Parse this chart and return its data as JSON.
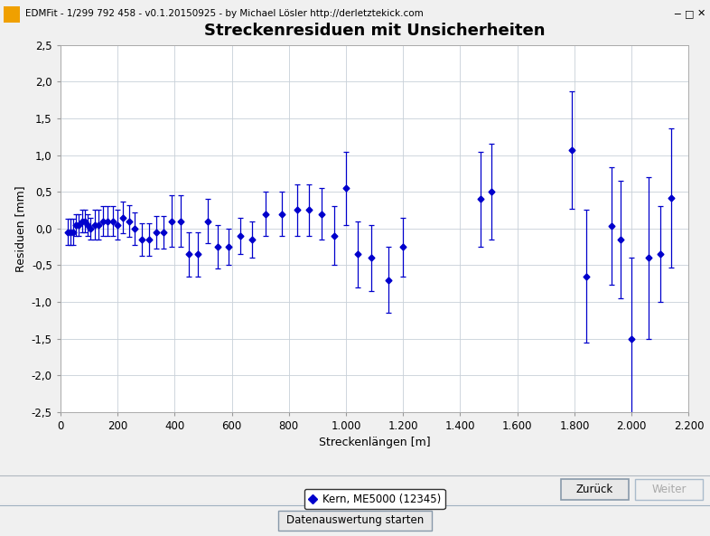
{
  "title": "Streckenresiduen mit Unsicherheiten",
  "xlabel": "Streckenlängen [m]",
  "ylabel": "Residuen [mm]",
  "ylim": [
    -2.5,
    2.5
  ],
  "xlim": [
    0,
    2200
  ],
  "yticks": [
    -2.5,
    -2.0,
    -1.5,
    -1.0,
    -0.5,
    0.0,
    0.5,
    1.0,
    1.5,
    2.0,
    2.5
  ],
  "xticks": [
    0,
    200,
    400,
    600,
    800,
    1000,
    1200,
    1400,
    1600,
    1800,
    2000,
    2200
  ],
  "xticklabels": [
    "0",
    "200",
    "400",
    "600",
    "800",
    "1.000",
    "1.200",
    "1.400",
    "1.600",
    "1.800",
    "2.000",
    "2.200"
  ],
  "yticklabels": [
    "-2,5",
    "-2,0",
    "-1,5",
    "-1,0",
    "-0,5",
    "0,0",
    "0,5",
    "1,0",
    "1,5",
    "2,0",
    "2,5"
  ],
  "data_color": "#0000cc",
  "marker_color": "#0000cc",
  "bg_color": "#dce6f0",
  "plot_bg": "#ffffff",
  "titlebar_bg": "#f0f0f0",
  "legend_label": "Kern, ME5000 (12345)",
  "title_fontsize": 13,
  "label_fontsize": 9,
  "tick_fontsize": 8.5,
  "titlebar_text": "EDMFit - 1/299 792 458 - v0.1.20150925 - by Michael Lösler http://derletztekick.com",
  "btn_label": "Datenauswertung starten",
  "x": [
    25,
    35,
    45,
    55,
    65,
    75,
    85,
    95,
    105,
    120,
    135,
    150,
    165,
    185,
    200,
    220,
    240,
    260,
    285,
    310,
    335,
    360,
    390,
    420,
    450,
    480,
    515,
    550,
    590,
    630,
    670,
    720,
    775,
    830,
    870,
    915,
    960,
    1000,
    1040,
    1090,
    1150,
    1200,
    1470,
    1510,
    1790,
    1840,
    1930,
    1960,
    2000,
    2060,
    2100,
    2140
  ],
  "y": [
    -0.05,
    -0.05,
    -0.05,
    0.05,
    0.05,
    0.1,
    0.1,
    0.05,
    0.0,
    0.05,
    0.05,
    0.1,
    0.1,
    0.1,
    0.05,
    0.15,
    0.1,
    0.0,
    -0.15,
    -0.15,
    -0.05,
    -0.05,
    0.1,
    0.1,
    -0.35,
    -0.35,
    0.1,
    -0.25,
    -0.25,
    -0.1,
    -0.15,
    0.2,
    0.2,
    0.25,
    0.25,
    0.2,
    -0.1,
    0.55,
    -0.35,
    -0.4,
    -0.7,
    -0.25,
    0.4,
    0.5,
    1.07,
    -0.65,
    0.03,
    -0.15,
    -1.5,
    -0.4,
    -0.35,
    0.42
  ],
  "yerr": [
    0.18,
    0.18,
    0.18,
    0.15,
    0.15,
    0.15,
    0.15,
    0.15,
    0.15,
    0.2,
    0.2,
    0.2,
    0.2,
    0.2,
    0.2,
    0.22,
    0.22,
    0.22,
    0.22,
    0.22,
    0.22,
    0.22,
    0.35,
    0.35,
    0.3,
    0.3,
    0.3,
    0.3,
    0.25,
    0.25,
    0.25,
    0.3,
    0.3,
    0.35,
    0.35,
    0.35,
    0.4,
    0.5,
    0.45,
    0.45,
    0.45,
    0.4,
    0.65,
    0.65,
    0.8,
    0.9,
    0.8,
    0.8,
    1.1,
    1.1,
    0.65,
    0.95
  ]
}
